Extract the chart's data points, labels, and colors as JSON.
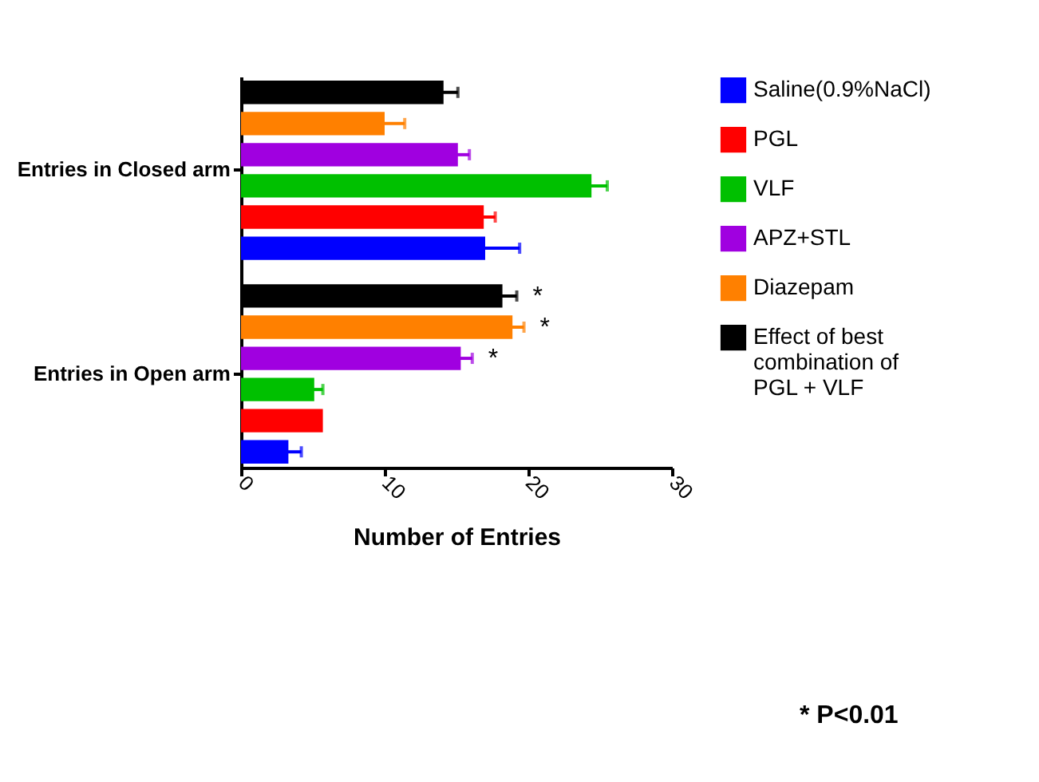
{
  "chart_data": {
    "type": "bar",
    "orientation": "horizontal",
    "xlabel": "Number of Entries",
    "categories": [
      "Entries in Closed arm",
      "Entries in Open arm"
    ],
    "series": [
      {
        "name": "Saline(0.9%NaCl)",
        "color": "#0000ff",
        "values": [
          17.0,
          3.3
        ],
        "errors": [
          2.4,
          0.9
        ]
      },
      {
        "name": "PGL",
        "color": "#ff0000",
        "values": [
          16.9,
          5.7
        ],
        "errors": [
          0.8,
          null
        ]
      },
      {
        "name": "VLF",
        "color": "#00c000",
        "values": [
          24.4,
          5.1
        ],
        "errors": [
          1.1,
          0.6
        ]
      },
      {
        "name": "APZ+STL",
        "color": "#a000e0",
        "values": [
          15.1,
          15.3
        ],
        "errors": [
          0.8,
          0.8
        ],
        "value_labels": [
          null,
          "*"
        ]
      },
      {
        "name": "Diazepam",
        "color": "#ff8000",
        "values": [
          10.0,
          18.9
        ],
        "errors": [
          1.4,
          0.8
        ],
        "value_labels": [
          null,
          "*"
        ]
      },
      {
        "name": "Effect of best combination of PGL + VLF",
        "color": "#000000",
        "values": [
          14.1,
          18.2
        ],
        "errors": [
          1.0,
          1.0
        ],
        "value_labels": [
          null,
          "*"
        ]
      }
    ],
    "xlim": [
      0,
      30
    ],
    "xticks": [
      0,
      10,
      20,
      30
    ],
    "grid": false,
    "legend": "right",
    "annotations": [
      "* P<0.01"
    ]
  }
}
